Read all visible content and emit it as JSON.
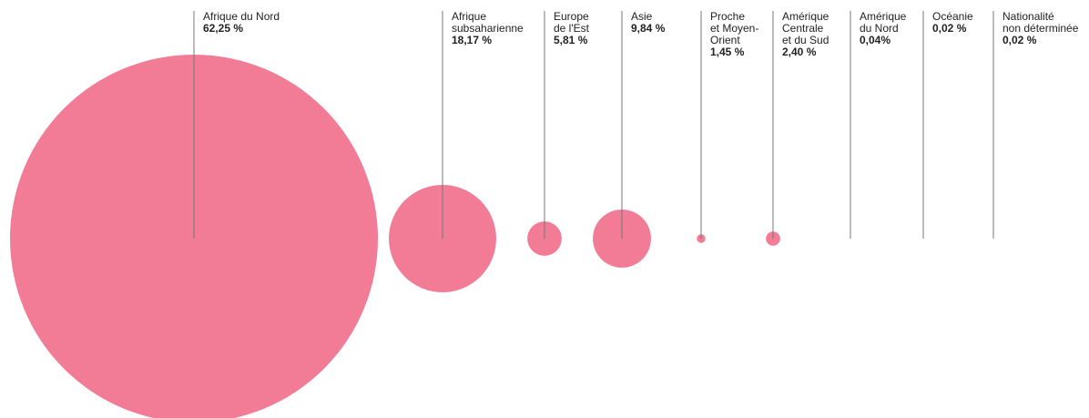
{
  "chart_data": {
    "type": "bubble",
    "categories": [
      "Afrique du Nord",
      "Afrique\nsubsaharienne",
      "Europe\nde l'Est",
      "Asie",
      "Proche\net Moyen-\nOrient",
      "Amérique\nCentrale\net du Sud",
      "Amérique\ndu Nord",
      "Océanie",
      "Nationalité\nnon déterminée"
    ],
    "values": [
      62.25,
      18.17,
      5.81,
      9.84,
      1.45,
      2.4,
      0.04,
      0.02,
      0.02
    ],
    "value_labels": [
      "62,25 %",
      "18,17 %",
      "5,81 %",
      "9,84 %",
      "1,45 %",
      "2,40 %",
      "0,04%",
      "0,02 %",
      "0,02 %"
    ],
    "color": "#f27b96"
  }
}
